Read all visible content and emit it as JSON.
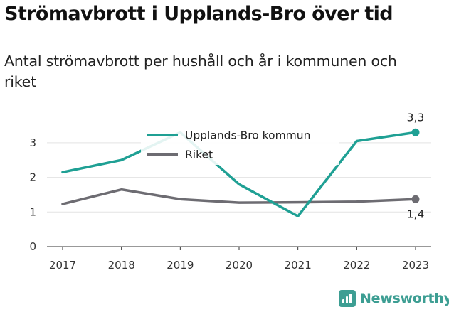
{
  "header": {
    "title": "Strömavbrott i Upplands-Bro över tid",
    "subtitle": "Antal strömavbrott per hushåll och år i kommunen och riket"
  },
  "brand": {
    "name": "Newsworthy",
    "icon": "newsworthy-logo-icon",
    "color": "#3d9e93"
  },
  "chart_data": {
    "type": "line",
    "x": [
      2017,
      2018,
      2019,
      2020,
      2021,
      2022,
      2023
    ],
    "x_tick_labels": [
      "2017",
      "2018",
      "2019",
      "2020",
      "2021",
      "2022",
      "2023"
    ],
    "y_ticks": [
      0,
      1,
      2,
      3
    ],
    "y_tick_labels": [
      "0",
      "1",
      "2",
      "3"
    ],
    "ylim": [
      0,
      3.5
    ],
    "grid": "horizontal",
    "legend_position": "top-center",
    "series": [
      {
        "name": "Upplands-Bro kommun",
        "color": "#1fa094",
        "values": [
          2.15,
          2.5,
          3.3,
          1.8,
          0.88,
          3.05,
          3.3
        ],
        "end_label": "3,3"
      },
      {
        "name": "Riket",
        "color": "#6d6c72",
        "values": [
          1.23,
          1.65,
          1.37,
          1.27,
          1.28,
          1.3,
          1.37
        ],
        "end_label": "1,4"
      }
    ]
  }
}
